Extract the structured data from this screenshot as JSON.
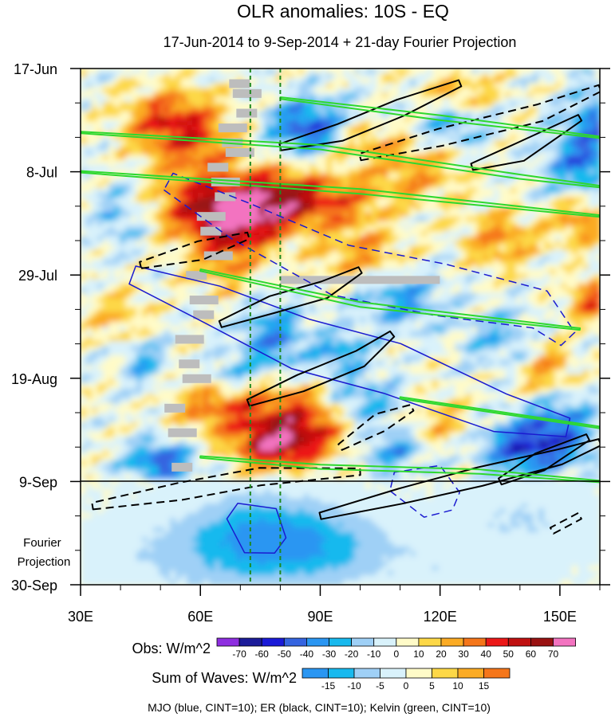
{
  "chart_data": {
    "type": "heatmap",
    "title": "OLR anomalies: 10S - EQ",
    "subtitle": "17-Jun-2014 to 9-Sep-2014 + 21-day Fourier Projection",
    "x_axis": {
      "range": [
        30,
        160
      ],
      "units": "longitude (degrees E)",
      "tick_values": [
        30,
        60,
        90,
        120,
        150
      ],
      "tick_labels": [
        "30E",
        "60E",
        "90E",
        "120E",
        "150E"
      ]
    },
    "y_axis": {
      "range_days": [
        0,
        105
      ],
      "tick_days": [
        0,
        21,
        42,
        63,
        84,
        105
      ],
      "tick_labels": [
        "17-Jun",
        "8-Jul",
        "29-Jul",
        "19-Aug",
        "9-Sep",
        "30-Sep"
      ],
      "observation_end_day": 84
    },
    "projection_label": "Fourier\nProjection",
    "reference_lines_lon": [
      72.5,
      80
    ],
    "obs_colorbar": {
      "label": "Obs: W/m^2",
      "levels": [
        -70,
        -60,
        -50,
        -40,
        -30,
        -20,
        -10,
        0,
        10,
        20,
        30,
        40,
        50,
        60,
        70
      ],
      "colors": [
        "#8e2ee0",
        "#1c1c9a",
        "#1a1ad8",
        "#3564e0",
        "#2a96f2",
        "#18b9ee",
        "#9fd0f6",
        "#d9f2fb",
        "#fffbc8",
        "#fdd847",
        "#fbab24",
        "#f5761a",
        "#ec1818",
        "#c01010",
        "#9a1212",
        "#f373c0"
      ]
    },
    "waves_colorbar": {
      "label": "Sum of Waves: W/m^2",
      "levels": [
        -15,
        -10,
        -5,
        0,
        5,
        10,
        15
      ],
      "colors": [
        "#2a96f2",
        "#18b9ee",
        "#9fd0f6",
        "#d9f2fb",
        "#fffbc8",
        "#fdd847",
        "#fbab24",
        "#f5761a"
      ]
    },
    "legend_note": "MJO (blue, CINT=10); ER (black, CINT=10); Kelvin (green, CINT=10)",
    "wave_contours": {
      "MJO": {
        "color": "#1a1ad0",
        "cint": 10,
        "features": [
          {
            "sign": "positive",
            "lon": [
              43,
              63,
              85,
              108,
              135,
              152
            ],
            "day": [
              42,
              48,
              56,
              61,
              70,
              73
            ]
          },
          {
            "sign": "negative",
            "lon": [
              52,
              70,
              95,
              120,
              145,
              152
            ],
            "day": [
              23,
              31,
              41,
              45,
              49,
              55
            ]
          },
          {
            "sign": "positive",
            "lon": [
              68,
              75,
              80
            ],
            "day": [
              90,
              94,
              97
            ]
          },
          {
            "sign": "negative",
            "lon": [
              108,
              118,
              124
            ],
            "day": [
              84,
              86,
              88
            ]
          }
        ]
      },
      "ER": {
        "color": "#000000",
        "cint": 10,
        "features": [
          {
            "sign": "positive",
            "lon": [
              80,
              95,
              110,
              125
            ],
            "day": [
              16,
              13,
              8,
              3
            ]
          },
          {
            "sign": "positive",
            "lon": [
              128,
              140,
              155
            ],
            "day": [
              20,
              17,
              10
            ]
          },
          {
            "sign": "positive",
            "lon": [
              65,
              78,
              91,
              100
            ],
            "day": [
              52,
              48,
              45,
              41
            ]
          },
          {
            "sign": "positive",
            "lon": [
              72,
              85,
              100,
              108
            ],
            "day": [
              68,
              64,
              59,
              54
            ]
          },
          {
            "sign": "positive",
            "lon": [
              90,
              110,
              130,
              150,
              160
            ],
            "day": [
              91,
              87,
              83,
              79,
              76
            ]
          },
          {
            "sign": "positive",
            "lon": [
              135,
              145,
              157
            ],
            "day": [
              84,
              80,
              75
            ]
          },
          {
            "sign": "negative",
            "lon": [
              100,
              120,
              145,
              160
            ],
            "day": [
              18,
              14,
              9,
              4
            ]
          },
          {
            "sign": "negative",
            "lon": [
              45,
              60,
              72
            ],
            "day": [
              40,
              37,
              34
            ]
          },
          {
            "sign": "negative",
            "lon": [
              95,
              105,
              113
            ],
            "day": [
              77,
              72,
              69
            ]
          },
          {
            "sign": "negative",
            "lon": [
              33,
              55,
              75,
              100
            ],
            "day": [
              89,
              86,
              83,
              82
            ]
          },
          {
            "sign": "negative",
            "lon": [
              148,
              155
            ],
            "day": [
              94,
              91
            ]
          }
        ]
      },
      "Kelvin": {
        "color": "#2ed82e",
        "cint": 10,
        "features": [
          {
            "sign": "positive",
            "lon": [
              30,
              90,
              140,
              160
            ],
            "day": [
              13,
              16,
              22,
              24
            ]
          },
          {
            "sign": "positive",
            "lon": [
              30,
              100,
              160
            ],
            "day": [
              21,
              25,
              30
            ]
          },
          {
            "sign": "positive",
            "lon": [
              80,
              120,
              160
            ],
            "day": [
              6,
              10,
              14
            ]
          },
          {
            "sign": "positive",
            "lon": [
              60,
              100,
              155
            ],
            "day": [
              41,
              48,
              53
            ]
          },
          {
            "sign": "positive",
            "lon": [
              110,
              160
            ],
            "day": [
              67,
              73
            ]
          },
          {
            "sign": "positive",
            "lon": [
              60,
              90,
              130,
              160
            ],
            "day": [
              79,
              81,
              82,
              84
            ]
          }
        ]
      }
    }
  }
}
